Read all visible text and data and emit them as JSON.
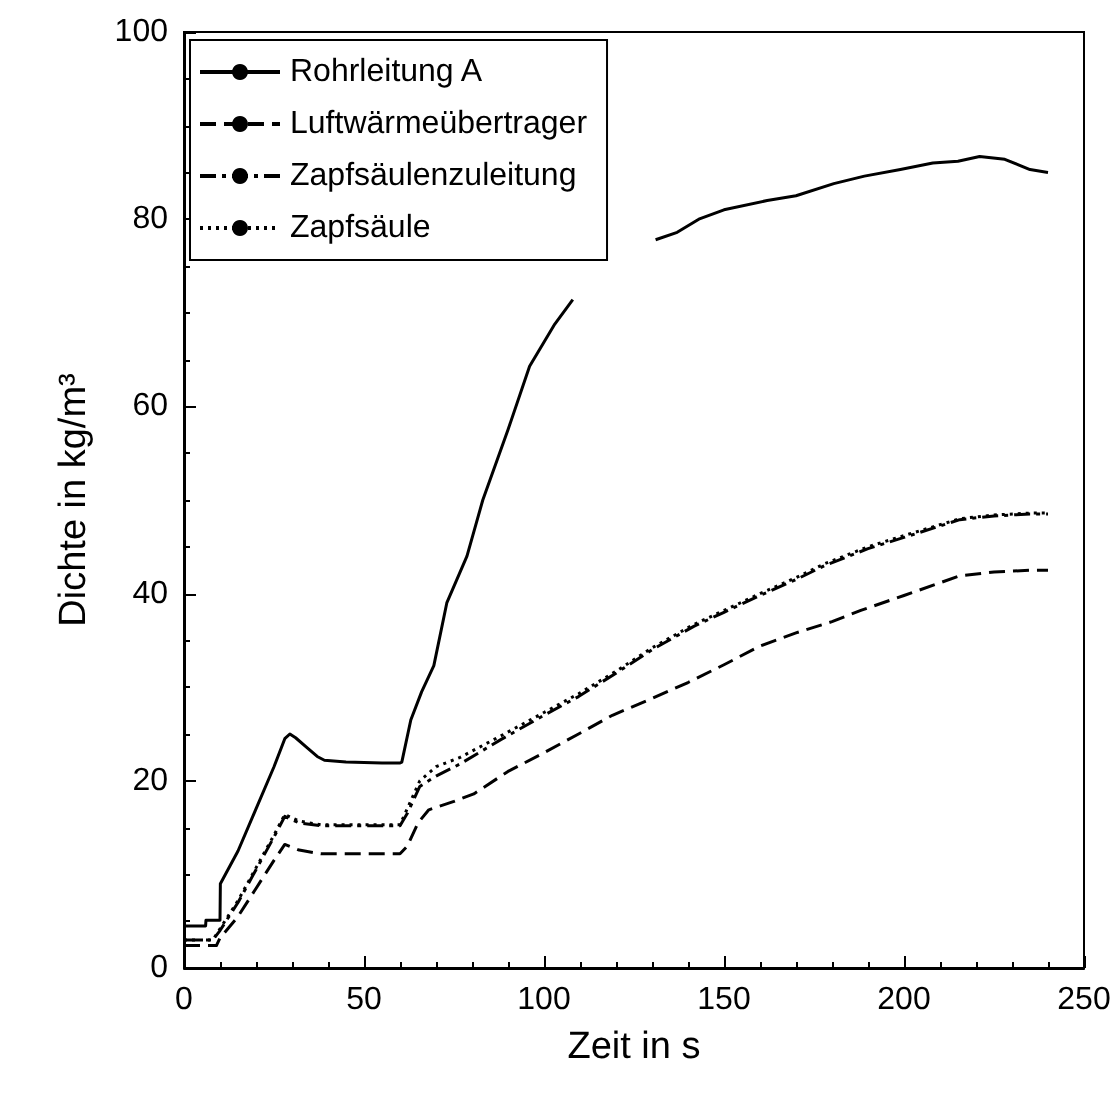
{
  "chart_data": {
    "type": "line",
    "xlabel": "Zeit in s",
    "ylabel": "Dichte in kg/m³",
    "xlim": [
      0,
      250
    ],
    "xticks": [
      0,
      50,
      100,
      150,
      200,
      250
    ],
    "ylim": [
      0,
      100
    ],
    "yticks": [
      0,
      20,
      40,
      60,
      80,
      100
    ],
    "grid": false,
    "legend": "top left",
    "marker": "none",
    "series": [
      {
        "name": "Rohrleitung A",
        "color": "#000000",
        "line_style": "solid",
        "x": [
          0,
          6,
          6.1,
          10,
          10.1,
          15,
          20,
          25,
          28,
          29.4,
          31,
          34,
          37,
          39,
          45,
          55,
          60,
          60.5,
          63,
          66,
          69.4,
          73,
          78.6,
          83,
          90,
          96,
          103,
          108,
          115,
          120,
          125,
          131,
          137,
          143,
          150,
          162,
          170,
          180.5,
          189,
          199,
          208,
          215,
          221,
          228,
          235,
          240
        ],
        "values": [
          4.5,
          4.5,
          5.1,
          5.1,
          9,
          12.5,
          17,
          21.5,
          24.5,
          25,
          24.6,
          23.6,
          22.6,
          22.2,
          22,
          21.9,
          21.9,
          22,
          26.5,
          29.5,
          32.3,
          39,
          44,
          50,
          57.5,
          64.3,
          68.8,
          71.4,
          null,
          null,
          null,
          77.8,
          78.6,
          80,
          81,
          82,
          82.5,
          83.8,
          84.6,
          85.3,
          86,
          86.2,
          86.7,
          86.4,
          85.3,
          85
        ]
      },
      {
        "name": "Luftwärmeübertrager",
        "color": "#000000",
        "line_style": "dashed",
        "x": [
          0,
          9,
          10,
          15,
          20,
          25,
          28,
          32,
          38,
          50,
          60,
          62,
          65,
          68,
          75,
          80.5,
          90,
          100,
          109.6,
          119,
          130,
          140,
          150,
          160,
          170,
          180,
          188,
          200,
          215.5,
          225,
          235,
          240
        ],
        "values": [
          2.4,
          2.4,
          3.2,
          5.5,
          8.5,
          11.5,
          13.2,
          12.6,
          12.2,
          12.2,
          12.2,
          13,
          15.5,
          16.9,
          17.8,
          18.6,
          21,
          23,
          25,
          27,
          28.8,
          30.5,
          32.4,
          34.4,
          35.8,
          37,
          38.2,
          39.8,
          41.9,
          42.3,
          42.5,
          42.5
        ]
      },
      {
        "name": "Zapfsäulenzuleitung",
        "color": "#000000",
        "line_style": "dashdot",
        "x": [
          0,
          8,
          10,
          15,
          20,
          25,
          28,
          32,
          38,
          50,
          60,
          62,
          65.5,
          70,
          76.7,
          88,
          100,
          109.6,
          120,
          130,
          141.6,
          150,
          160,
          170,
          178,
          190,
          200,
          215.5,
          225,
          235,
          240
        ],
        "values": [
          3,
          3,
          4,
          7,
          10.5,
          14,
          16.2,
          15.5,
          15.2,
          15.2,
          15.2,
          16.5,
          19.4,
          20.5,
          21.8,
          24.4,
          27,
          29,
          31.5,
          34,
          36.5,
          38,
          39.8,
          41.5,
          43,
          44.8,
          46,
          47.9,
          48.3,
          48.5,
          48.5
        ]
      },
      {
        "name": "Zapfsäule",
        "color": "#000000",
        "line_style": "dotted",
        "x": [
          0,
          8,
          10,
          15,
          20,
          25,
          28,
          32,
          38,
          50,
          60,
          62,
          65.5,
          70,
          76.7,
          88,
          100,
          109.6,
          120,
          130,
          141.6,
          150,
          160,
          170,
          178,
          190,
          200,
          215.5,
          225,
          235,
          240
        ],
        "values": [
          3,
          3,
          4.2,
          7.2,
          10.7,
          14.2,
          16.4,
          15.7,
          15.3,
          15.3,
          15.3,
          17,
          20,
          21.5,
          22.5,
          24.8,
          27.3,
          29.3,
          31.7,
          34.2,
          36.7,
          38.2,
          40,
          41.7,
          43.2,
          45,
          46.2,
          48,
          48.4,
          48.6,
          48.6
        ]
      }
    ]
  }
}
